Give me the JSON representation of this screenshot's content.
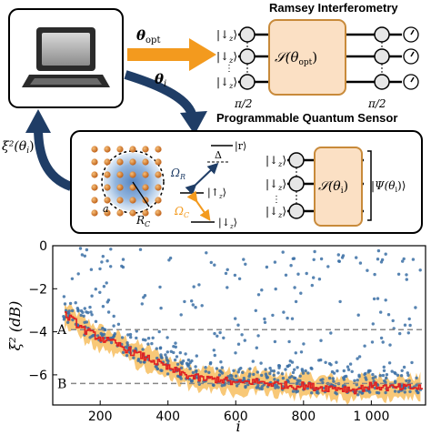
{
  "diagram": {
    "ramsey_title": "Ramsey Interferometry",
    "sensor_title": "Programmable Quantum Sensor",
    "theta_opt": "θ",
    "theta_opt_sub": "opt",
    "theta_i": "θ",
    "theta_i_sub": "i",
    "xi_label": "ξ²(θ",
    "xi_label_sub": "i",
    "xi_label_end": ")",
    "ket_down": "|↓",
    "ket_up": "|↑",
    "ket_r": "|r⟩",
    "ket_sub": "z",
    "ket_close": "⟩",
    "s_opt": "𝒮(θ",
    "s_opt_sub": "opt",
    "s_close": ")",
    "s_i": "𝒮(θ",
    "s_i_sub": "i",
    "pi2_left": "π/2",
    "pi2_right": "π/2",
    "delta": "Δ",
    "omega_r": "Ω",
    "omega_r_sub": "R",
    "omega_c": "Ω",
    "omega_c_sub": "C",
    "lattice_a": "a",
    "rc": "R",
    "rc_sub": "C",
    "psi": "Ψ(θ",
    "psi_sub": "i",
    "psi_close": ")⟩"
  },
  "colors": {
    "orange_arrow": "#f39a1e",
    "navy_arrow": "#1f3d66",
    "s_box_fill": "#fbe0c4",
    "s_box_stroke": "#c88a3a",
    "atom": "#d77a1e",
    "blob": "#7fa8d8",
    "scatter": "#3a6ea5",
    "running_line": "#e02020",
    "band": "#f6b64a",
    "ref_line": "#888888"
  },
  "chart_data": {
    "type": "scatter",
    "xlabel": "i",
    "ylabel": "ξ²  (dB)",
    "xlim": [
      60,
      1160
    ],
    "ylim": [
      -7.4,
      0
    ],
    "xticks": [
      200,
      400,
      600,
      800,
      1000
    ],
    "xtick_labels": [
      "200",
      "400",
      "600",
      "800",
      "1 000"
    ],
    "yticks": [
      0,
      -2,
      -4,
      -6
    ],
    "ytick_labels": [
      "0",
      "−2",
      "−4",
      "−6"
    ],
    "reference_lines": [
      {
        "label": "A",
        "y": -3.9
      },
      {
        "label": "B",
        "y": -6.4
      }
    ],
    "running_minimum": {
      "x": [
        95,
        120,
        150,
        200,
        250,
        300,
        350,
        400,
        450,
        500,
        550,
        600,
        650,
        700,
        750,
        800,
        850,
        900,
        950,
        1000,
        1050,
        1100,
        1150
      ],
      "y": [
        -3.2,
        -3.5,
        -3.9,
        -4.3,
        -4.6,
        -5.0,
        -5.3,
        -5.7,
        -6.0,
        -6.2,
        -6.2,
        -6.4,
        -6.3,
        -6.4,
        -6.5,
        -6.5,
        -6.6,
        -6.6,
        -6.7,
        -6.5,
        -6.6,
        -6.6,
        -6.6
      ]
    },
    "band_halfwidth_db": 0.5,
    "scatter_point_count": 650,
    "scatter_note_hidden": false
  }
}
